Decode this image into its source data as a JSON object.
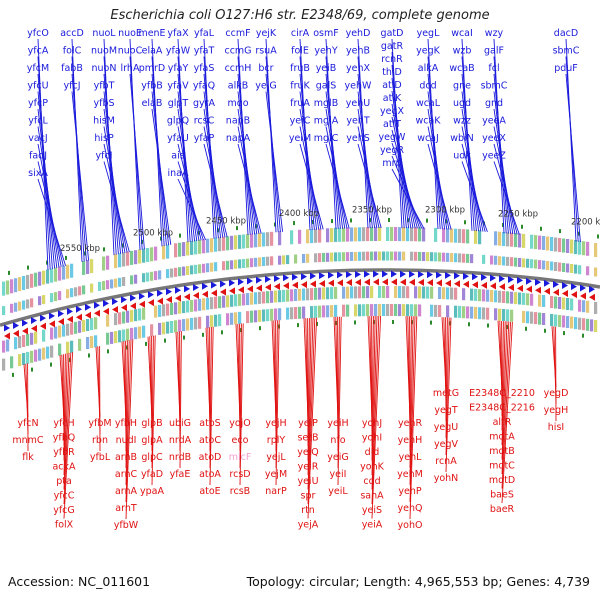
{
  "header": {
    "title": "Escherichia coli O127:H6 str. E2348/69, complete genome"
  },
  "footer": {
    "accession": "Accession: NC_011601",
    "summary": "Topology: circular; Length: 4,965,553 bp; Genes: 4,739"
  },
  "colors": {
    "forward": "#1a1adc",
    "reverse": "#e01212",
    "pseudo": "#f0a0d0",
    "backbone": "#777777",
    "tick": "#2a8a2a"
  },
  "kbp_labels": [
    "2550 kbp",
    "2500 kbp",
    "2450 kbp",
    "2400 kbp",
    "2350 kbp",
    "2300 kbp",
    "2250 kbp",
    "2200 kbp"
  ],
  "top_columns": [
    [
      "yfcO",
      "yfcA",
      "yfcM",
      "yfcU",
      "yfcP",
      "yfcL",
      "vacJ",
      "fadJ",
      "sixA"
    ],
    [
      "accD",
      "folC",
      "fabB",
      "yfcJ"
    ],
    [
      "nuoL",
      "nuoM",
      "nuoN",
      "yfbT",
      "yfbS",
      "hisM",
      "hisP",
      "yfcI"
    ],
    [
      "nuoE",
      "nuoC",
      "lrhA"
    ],
    [
      "menE",
      "elaA",
      "pmrD",
      "yfbB",
      "elaB"
    ],
    [
      "yfaX",
      "yfaW",
      "yfaY",
      "yfaV",
      "glpT",
      "glpQ",
      "yfaU",
      "ais",
      "inaA"
    ],
    [
      "yfaL",
      "yfaT",
      "yfaS",
      "yfaQ",
      "gyrA",
      "rcsC",
      "yfaP"
    ],
    [
      "ccmF",
      "ccmG",
      "ccmH",
      "alkB",
      "mqo",
      "napB",
      "napA"
    ],
    [
      "yejK",
      "rsuA",
      "bcr",
      "yejG"
    ],
    [
      "cirA",
      "folE",
      "fruB",
      "fruK",
      "fruA",
      "yeiC",
      "yeiM"
    ],
    [
      "osmF",
      "yehY",
      "yeiB",
      "galS",
      "mglB",
      "mglA",
      "mglC"
    ],
    [
      "yehD",
      "yehB",
      "yehX",
      "yehW",
      "yehU",
      "yehT",
      "yehS"
    ],
    [
      "gatD",
      "gatR",
      "rcnR",
      "thiD",
      "atlD",
      "atlK",
      "yegX",
      "atlT",
      "yegW",
      "yegR",
      "mrp"
    ],
    [
      "yegL",
      "yegK",
      "alkA",
      "dcd",
      "wcaL",
      "wcaK",
      "wcaJ"
    ],
    [
      "wcaI",
      "wzb",
      "wcaB",
      "gne",
      "ugd",
      "wzz",
      "wbiN",
      "udk"
    ],
    [
      "wzy",
      "galF",
      "fcl",
      "sbmC",
      "gnd",
      "yeeA",
      "yeeX",
      "yeeZ"
    ],
    [
      "dacD",
      "sbmC",
      "pduF"
    ]
  ],
  "bottom_columns": [
    [
      "yfcN",
      "mnmC",
      "flk"
    ],
    [
      "yfcH",
      "yfbQ",
      "yfbR",
      "ackA",
      "pta",
      "yfcC",
      "yfcG",
      "folX"
    ],
    [
      "yfbM",
      "rbn",
      "yfbL"
    ],
    [
      "yfbH",
      "nudI",
      "arnB",
      "arnC",
      "arnA",
      "arnT",
      "yfbW"
    ],
    [
      "glpB",
      "glpA",
      "glpC",
      "yfaD",
      "ypaA"
    ],
    [
      "ubiG",
      "nrdA",
      "nrdB",
      "yfaE"
    ],
    [
      "atoS",
      "atoC",
      "atoD",
      "atoA",
      "atoE"
    ],
    [
      "yojO",
      "eco",
      "micF",
      "rcsD",
      "rcsB"
    ],
    [
      "yejH",
      "rplY",
      "yejL",
      "yejM",
      "narP"
    ],
    [
      "yeiP",
      "setB",
      "yeiQ",
      "yeiR",
      "yeiU",
      "spr",
      "rtn",
      "yejA"
    ],
    [
      "yeiH",
      "nfo",
      "yeiG",
      "yeiI",
      "yeiL"
    ],
    [
      "yohJ",
      "yohI",
      "dld",
      "yohK",
      "cdd",
      "sanA",
      "yeiS",
      "yeiA"
    ],
    [
      "yehR",
      "yehH",
      "yehL",
      "yehM",
      "yehP",
      "yehQ",
      "yohO"
    ],
    [
      "metG",
      "yegT",
      "yegU",
      "yegV",
      "rcnA",
      "yohN"
    ],
    [
      "E2348C_2210",
      "E2348C_2216",
      "altR",
      "mdtA",
      "mdtB",
      "mdtC",
      "mdtD",
      "baeS",
      "baeR"
    ],
    [
      "yegD",
      "yegH",
      "hisI"
    ]
  ]
}
